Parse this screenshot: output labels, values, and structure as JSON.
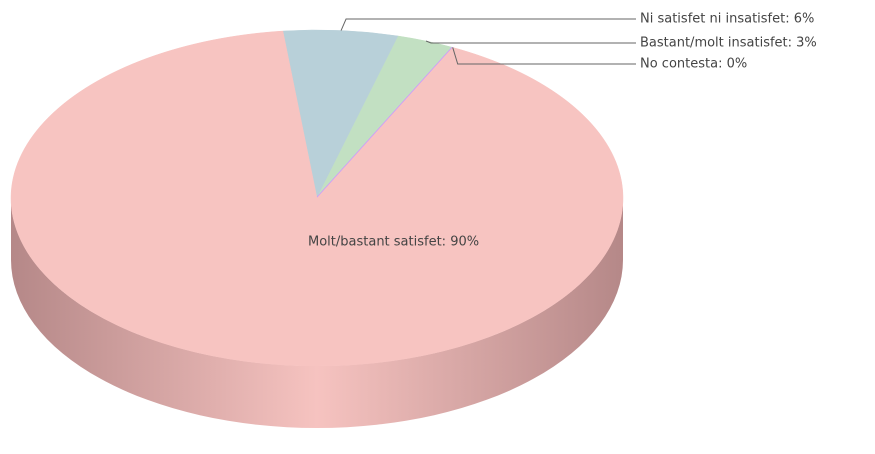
{
  "chart_data": {
    "type": "pie3d",
    "labels": [
      "Molt/bastant satisfet: 90%",
      "Ni satisfet ni insatisfet: 6%",
      "Bastant/molt insatisfet: 3%",
      "No contesta: 0%"
    ],
    "values": [
      90,
      6,
      3,
      0
    ],
    "colors": [
      "#f7c4c1",
      "#b8d0d9",
      "#c2e0c2",
      "#cc99ff"
    ]
  }
}
